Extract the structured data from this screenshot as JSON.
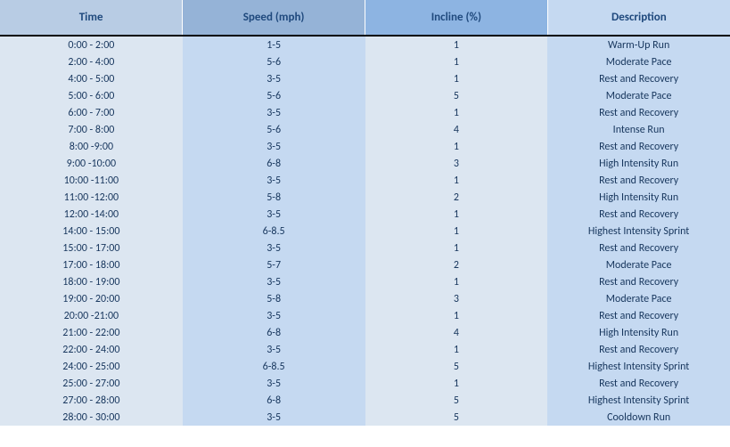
{
  "table": {
    "columns": [
      {
        "label": "Time",
        "width": "25%",
        "header_bg": "#b8cce4"
      },
      {
        "label": "Speed (mph)",
        "width": "25%",
        "header_bg": "#95b3d7"
      },
      {
        "label": "Incline (%)",
        "width": "25%",
        "header_bg": "#8db4e2"
      },
      {
        "label": "Description",
        "width": "25%",
        "header_bg": "#c5d9f1"
      }
    ],
    "col_bg": [
      "#dce6f1",
      "#c5d9f1",
      "#dce6f1",
      "#c5d9f1"
    ],
    "header_text_color": "#1f497d",
    "body_text_color": "#17365d",
    "rows": [
      [
        "0:00 - 2:00",
        "1-5",
        "1",
        "Warm-Up Run"
      ],
      [
        "2:00 - 4:00",
        "5-6",
        "1",
        "Moderate Pace"
      ],
      [
        "4:00 - 5:00",
        "3-5",
        "1",
        "Rest and Recovery"
      ],
      [
        "5:00 - 6:00",
        "5-6",
        "5",
        "Moderate Pace"
      ],
      [
        "6:00 - 7:00",
        "3-5",
        "1",
        "Rest and Recovery"
      ],
      [
        "7:00 - 8:00",
        "5-6",
        "4",
        "Intense Run"
      ],
      [
        "8:00 -9:00",
        "3-5",
        "1",
        "Rest and Recovery"
      ],
      [
        "9:00 -10:00",
        "6-8",
        "3",
        "High Intensity Run"
      ],
      [
        "10:00 -11:00",
        "3-5",
        "1",
        "Rest and Recovery"
      ],
      [
        "11:00 -12:00",
        "5-8",
        "2",
        "High Intensity Run"
      ],
      [
        "12:00 -14:00",
        "3-5",
        "1",
        "Rest and Recovery"
      ],
      [
        "14:00 - 15:00",
        "6-8.5",
        "1",
        "Highest Intensity Sprint"
      ],
      [
        "15:00 - 17:00",
        "3-5",
        "1",
        "Rest and Recovery"
      ],
      [
        "17:00 - 18:00",
        "5-7",
        "2",
        "Moderate Pace"
      ],
      [
        "18:00 - 19:00",
        "3-5",
        "1",
        "Rest and Recovery"
      ],
      [
        "19:00 - 20:00",
        "5-8",
        "3",
        "Moderate Pace"
      ],
      [
        "20:00 -21:00",
        "3-5",
        "1",
        "Rest and Recovery"
      ],
      [
        "21:00 - 22:00",
        "6-8",
        "4",
        "High Intensity Run"
      ],
      [
        "22:00 - 24:00",
        "3-5",
        "1",
        "Rest and Recovery"
      ],
      [
        "24:00 - 25:00",
        "6-8.5",
        "5",
        "Highest Intensity Sprint"
      ],
      [
        "25:00 - 27:00",
        "3-5",
        "1",
        "Rest and Recovery"
      ],
      [
        "27:00 - 28:00",
        "6-8",
        "5",
        "Highest Intensity Sprint"
      ],
      [
        "28:00 - 30:00",
        "3-5",
        "5",
        "Cooldown Run"
      ]
    ]
  }
}
